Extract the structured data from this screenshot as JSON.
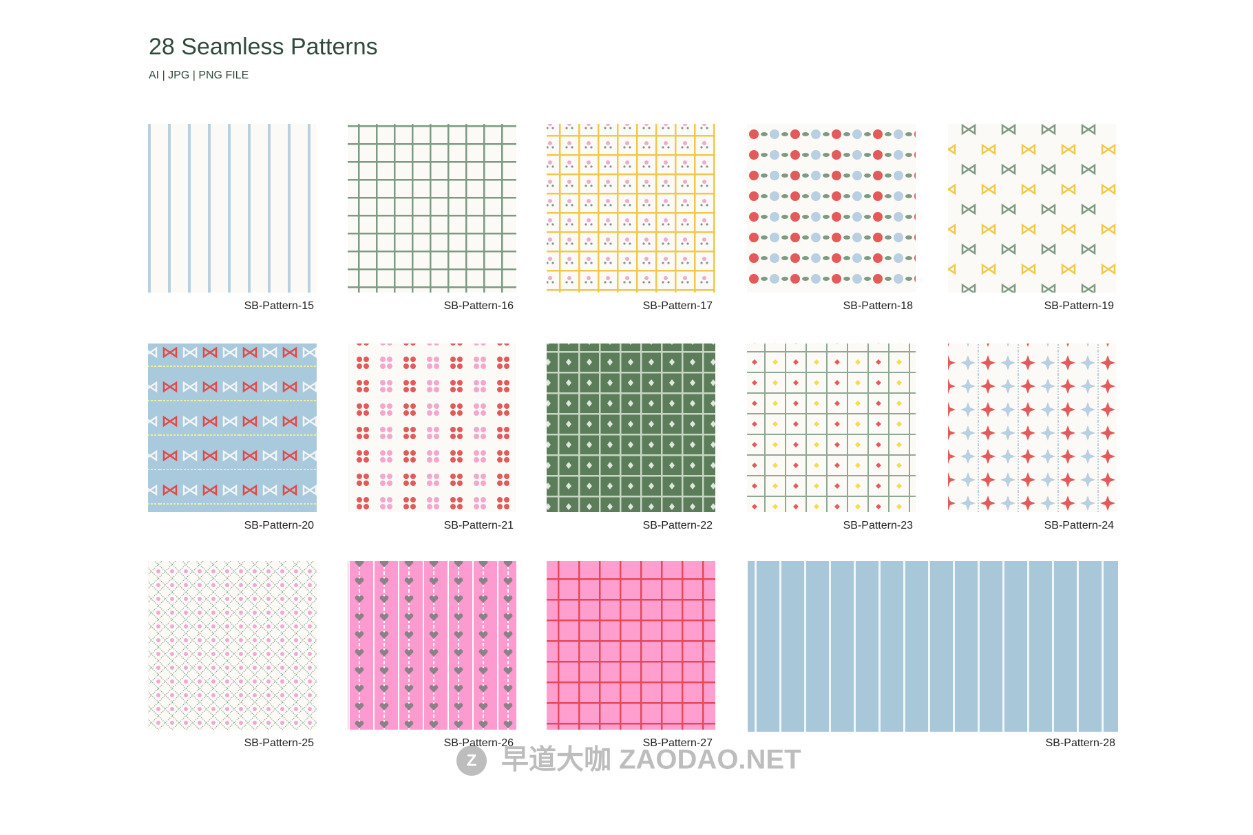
{
  "header": {
    "title": "28 Seamless Patterns",
    "subtitle": "AI | JPG | PNG FILE"
  },
  "patterns": [
    {
      "label": "SB-Pattern-15"
    },
    {
      "label": "SB-Pattern-16"
    },
    {
      "label": "SB-Pattern-17"
    },
    {
      "label": "SB-Pattern-18"
    },
    {
      "label": "SB-Pattern-19"
    },
    {
      "label": "SB-Pattern-20"
    },
    {
      "label": "SB-Pattern-21"
    },
    {
      "label": "SB-Pattern-22"
    },
    {
      "label": "SB-Pattern-23"
    },
    {
      "label": "SB-Pattern-24"
    },
    {
      "label": "SB-Pattern-25"
    },
    {
      "label": "SB-Pattern-26"
    },
    {
      "label": "SB-Pattern-27"
    },
    {
      "label": "SB-Pattern-28"
    }
  ],
  "watermark": "早道大咖 ZAODAO.NET"
}
